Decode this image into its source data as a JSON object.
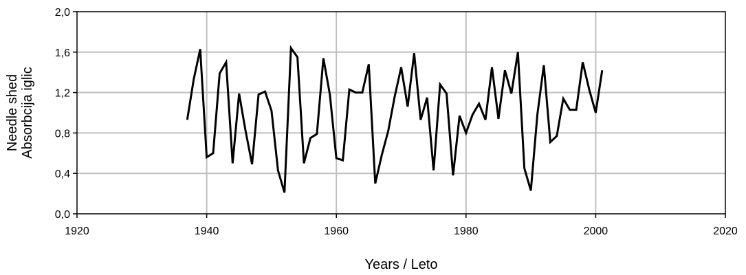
{
  "chart_data": {
    "type": "line",
    "title": "",
    "xlabel": "Years / Leto",
    "ylabel": [
      "Needle shed",
      "Absorbcija iglic"
    ],
    "xlim": [
      1920,
      2020
    ],
    "ylim": [
      0.0,
      2.0
    ],
    "x_ticks": [
      "1920",
      "1940",
      "1960",
      "1980",
      "2000",
      "2020"
    ],
    "y_ticks": [
      "0,0",
      "0,4",
      "0,8",
      "1,2",
      "1,6",
      "2,0"
    ],
    "grid": true,
    "line_color": "#000000",
    "grid_color": "#bfbfbf",
    "series": [
      {
        "x": [
          1937,
          1938,
          1939,
          1940,
          1941,
          1942,
          1943,
          1944,
          1945,
          1946,
          1947,
          1948,
          1949,
          1950,
          1951,
          1952,
          1953,
          1954,
          1955,
          1956,
          1957,
          1958,
          1959,
          1960,
          1961,
          1962,
          1963,
          1964,
          1965,
          1966,
          1967,
          1968,
          1969,
          1970,
          1971,
          1972,
          1973,
          1974,
          1975,
          1976,
          1977,
          1978,
          1979,
          1980,
          1981,
          1982,
          1983,
          1984,
          1985,
          1986,
          1987,
          1988,
          1989,
          1990,
          1991,
          1992,
          1993,
          1994,
          1995,
          1996,
          1997,
          1998,
          1999,
          2000,
          2001
        ],
        "y": [
          0.93,
          1.33,
          1.63,
          0.56,
          0.6,
          1.39,
          1.5,
          0.5,
          1.19,
          0.82,
          0.49,
          1.18,
          1.21,
          1.02,
          0.43,
          0.21,
          1.64,
          1.55,
          0.5,
          0.75,
          0.79,
          1.54,
          1.18,
          0.55,
          0.53,
          1.23,
          1.2,
          1.2,
          1.48,
          0.3,
          0.58,
          0.82,
          1.16,
          1.45,
          1.06,
          1.59,
          0.93,
          1.15,
          0.43,
          1.28,
          1.19,
          0.38,
          0.97,
          0.8,
          0.98,
          1.09,
          0.93,
          1.45,
          0.94,
          1.42,
          1.19,
          1.6,
          0.45,
          0.23,
          0.98,
          1.47,
          0.71,
          0.77,
          1.14,
          1.03,
          1.03,
          1.5,
          1.23,
          1.0,
          1.42
        ]
      }
    ]
  }
}
